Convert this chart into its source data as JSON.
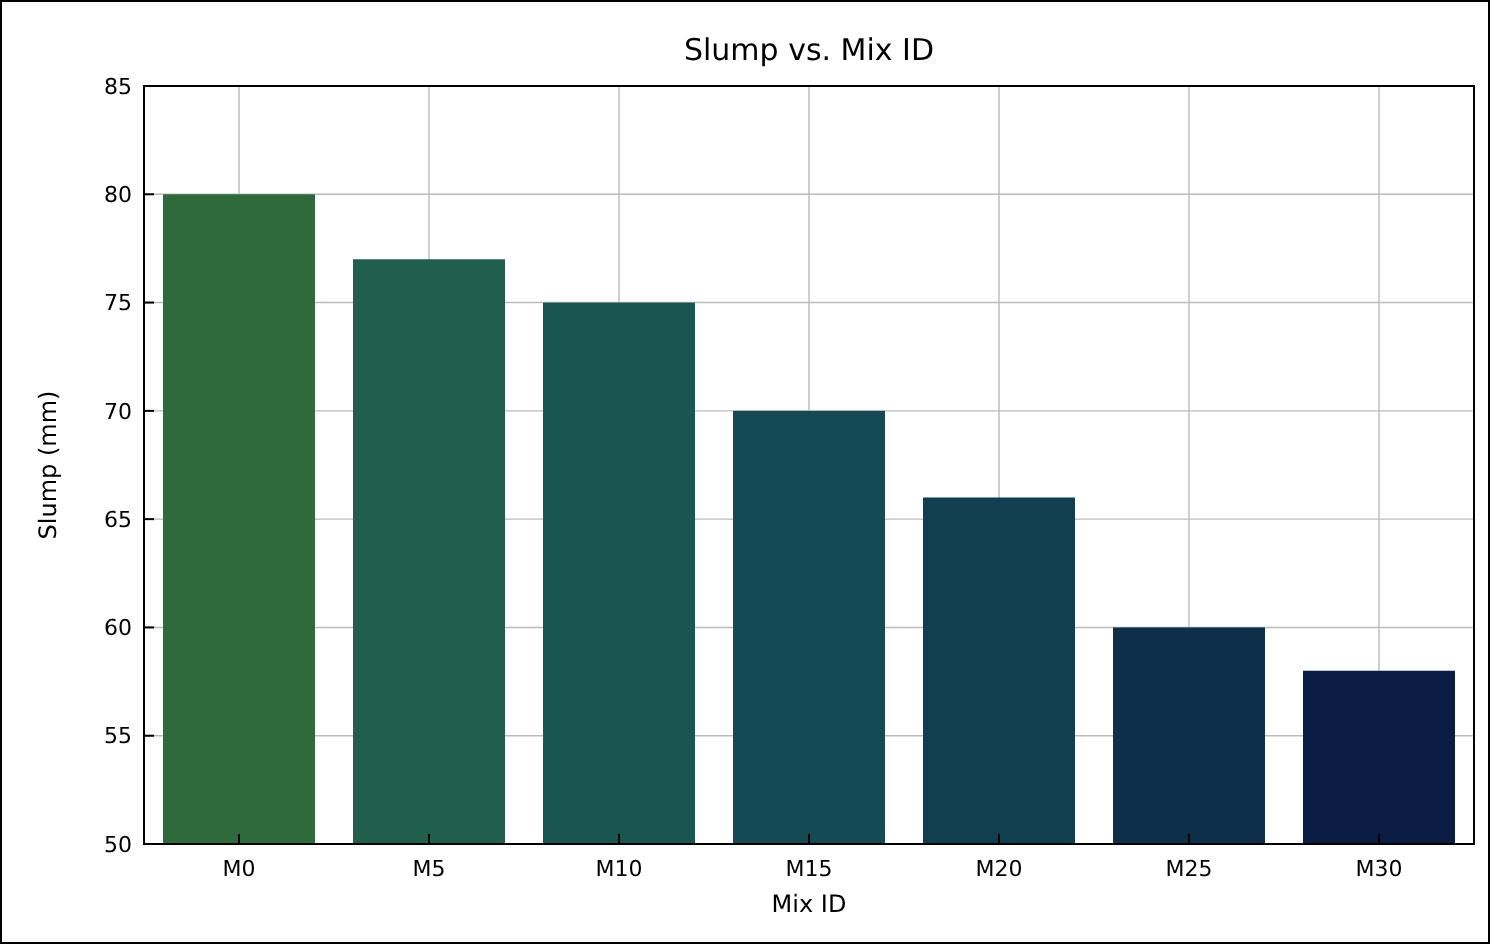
{
  "chart_data": {
    "type": "bar",
    "title": "Slump vs. Mix ID",
    "xlabel": "Mix ID",
    "ylabel": "Slump (mm)",
    "categories": [
      "M0",
      "M5",
      "M10",
      "M15",
      "M20",
      "M25",
      "M30"
    ],
    "values": [
      80,
      77,
      75,
      70,
      66,
      60,
      58
    ],
    "colors": [
      "#2f6a3c",
      "#1f5f4c",
      "#1a5552",
      "#164a52",
      "#123f4f",
      "#0e2f4a",
      "#0a1c42"
    ],
    "ylim": [
      50,
      85
    ],
    "yticks": [
      50,
      55,
      60,
      65,
      70,
      75,
      80,
      85
    ],
    "grid": true
  }
}
